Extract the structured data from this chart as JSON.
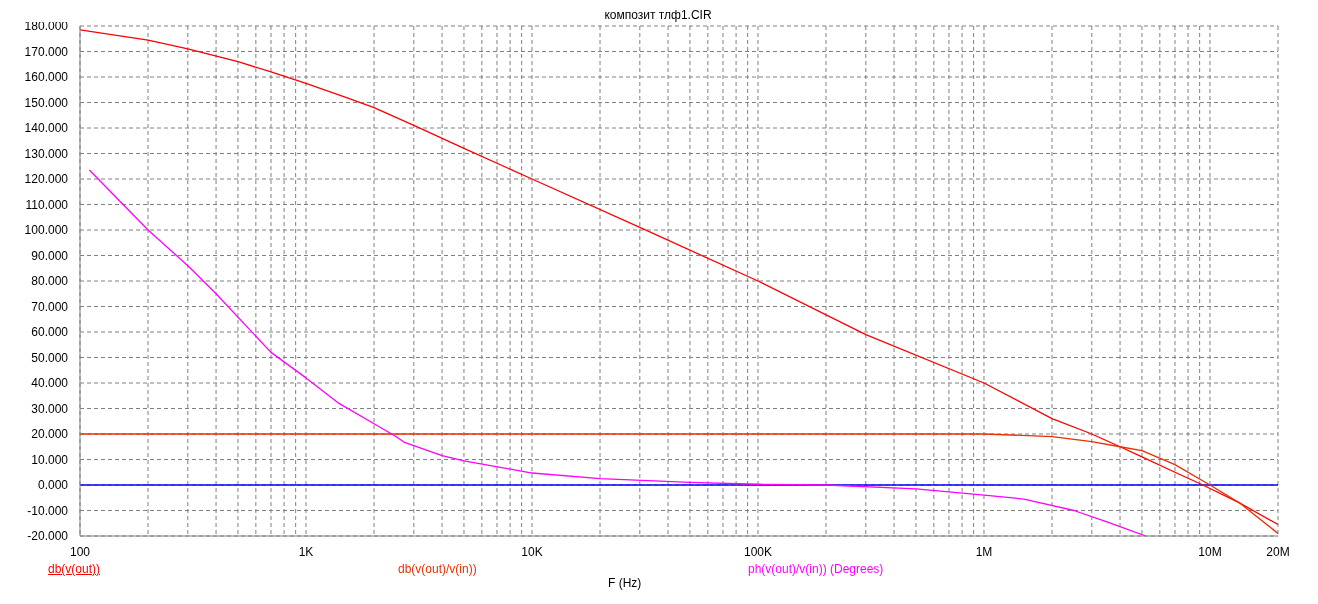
{
  "chart_data": {
    "type": "line",
    "title": "композит тлф1.CIR",
    "xlabel": "F (Hz)",
    "log": "x",
    "grid": true,
    "legend": "bottom",
    "marker": "none",
    "line_style": "solid",
    "xlim": [
      100,
      20000000
    ],
    "xticks": [
      {
        "value": 100,
        "label": "100"
      },
      {
        "value": 200,
        "label": null
      },
      {
        "value": 300,
        "label": null
      },
      {
        "value": 400,
        "label": null
      },
      {
        "value": 500,
        "label": null
      },
      {
        "value": 600,
        "label": null
      },
      {
        "value": 700,
        "label": null
      },
      {
        "value": 800,
        "label": null
      },
      {
        "value": 900,
        "label": null
      },
      {
        "value": 1000,
        "label": "1K"
      },
      {
        "value": 2000,
        "label": null
      },
      {
        "value": 3000,
        "label": null
      },
      {
        "value": 4000,
        "label": null
      },
      {
        "value": 5000,
        "label": null
      },
      {
        "value": 6000,
        "label": null
      },
      {
        "value": 7000,
        "label": null
      },
      {
        "value": 8000,
        "label": null
      },
      {
        "value": 9000,
        "label": null
      },
      {
        "value": 10000,
        "label": "10K"
      },
      {
        "value": 20000,
        "label": null
      },
      {
        "value": 30000,
        "label": null
      },
      {
        "value": 40000,
        "label": null
      },
      {
        "value": 50000,
        "label": null
      },
      {
        "value": 60000,
        "label": null
      },
      {
        "value": 70000,
        "label": null
      },
      {
        "value": 80000,
        "label": null
      },
      {
        "value": 90000,
        "label": null
      },
      {
        "value": 100000,
        "label": "100K"
      },
      {
        "value": 200000,
        "label": null
      },
      {
        "value": 300000,
        "label": null
      },
      {
        "value": 400000,
        "label": null
      },
      {
        "value": 500000,
        "label": null
      },
      {
        "value": 600000,
        "label": null
      },
      {
        "value": 700000,
        "label": null
      },
      {
        "value": 800000,
        "label": null
      },
      {
        "value": 900000,
        "label": null
      },
      {
        "value": 1000000,
        "label": "1M"
      },
      {
        "value": 2000000,
        "label": null
      },
      {
        "value": 3000000,
        "label": null
      },
      {
        "value": 4000000,
        "label": null
      },
      {
        "value": 5000000,
        "label": null
      },
      {
        "value": 6000000,
        "label": null
      },
      {
        "value": 7000000,
        "label": null
      },
      {
        "value": 8000000,
        "label": null
      },
      {
        "value": 9000000,
        "label": null
      },
      {
        "value": 10000000,
        "label": "10M"
      },
      {
        "value": 20000000,
        "label": "20M"
      }
    ],
    "ylim": [
      -20,
      180
    ],
    "yticks": [
      {
        "value": -20,
        "label": "-20.000"
      },
      {
        "value": -10,
        "label": "-10.000"
      },
      {
        "value": 0,
        "label": "0.000"
      },
      {
        "value": 10,
        "label": "10.000"
      },
      {
        "value": 20,
        "label": "20.000"
      },
      {
        "value": 30,
        "label": "30.000"
      },
      {
        "value": 40,
        "label": "40.000"
      },
      {
        "value": 50,
        "label": "50.000"
      },
      {
        "value": 60,
        "label": "60.000"
      },
      {
        "value": 70,
        "label": "70.000"
      },
      {
        "value": 80,
        "label": "80.000"
      },
      {
        "value": 90,
        "label": "90.000"
      },
      {
        "value": 100,
        "label": "100.000"
      },
      {
        "value": 110,
        "label": "110.000"
      },
      {
        "value": 120,
        "label": "120.000"
      },
      {
        "value": 130,
        "label": "130.000"
      },
      {
        "value": 140,
        "label": "140.000"
      },
      {
        "value": 150,
        "label": "150.000"
      },
      {
        "value": 160,
        "label": "160.000"
      },
      {
        "value": 170,
        "label": "170.000"
      },
      {
        "value": 180,
        "label": "180.000"
      }
    ],
    "ref_lines": [
      {
        "axis": "y",
        "value": 0,
        "color": "#0000ff"
      }
    ],
    "series": [
      {
        "name": "db(v(out))",
        "color": "#ff0000",
        "x": [
          100,
          200,
          300,
          500,
          700,
          1000,
          1500,
          2000,
          3000,
          5000,
          10000,
          30000,
          100000,
          300000,
          1000000,
          2000000,
          3000000,
          4000000,
          5000000,
          7000000,
          9300000,
          13500000,
          20000000
        ],
        "values": [
          178.5,
          174.5,
          171,
          166,
          162,
          157.5,
          152,
          148,
          141,
          132,
          120,
          101,
          80,
          59,
          40,
          26,
          20,
          15,
          11,
          5,
          0,
          -7,
          -15.5
        ]
      },
      {
        "name": "db(v(out)/v(in))",
        "color": "#e83000",
        "x": [
          100,
          1000000,
          2000000,
          3000000,
          4000000,
          5000000,
          7000000,
          10000000,
          13500000,
          20000000
        ],
        "values": [
          20,
          20,
          19,
          17,
          15,
          13.5,
          8,
          0,
          -7,
          -19
        ]
      },
      {
        "name": "ph(v(out)/v(in)) (Degrees)",
        "color": "#ff00ff",
        "x": [
          110,
          200,
          300,
          400,
          700,
          1000,
          1400,
          2000,
          2500,
          2730,
          4000,
          5000,
          10000,
          20000,
          50000,
          100000,
          200000,
          500000,
          1000000,
          1500000,
          2500000,
          3500000,
          5200000
        ],
        "values": [
          123.5,
          100,
          86,
          75,
          52,
          42,
          32,
          24,
          19,
          16.7,
          11.5,
          9.5,
          4.7,
          2.5,
          1,
          0.3,
          0,
          -1.5,
          -4,
          -5.5,
          -10,
          -14.5,
          -20
        ]
      }
    ]
  }
}
